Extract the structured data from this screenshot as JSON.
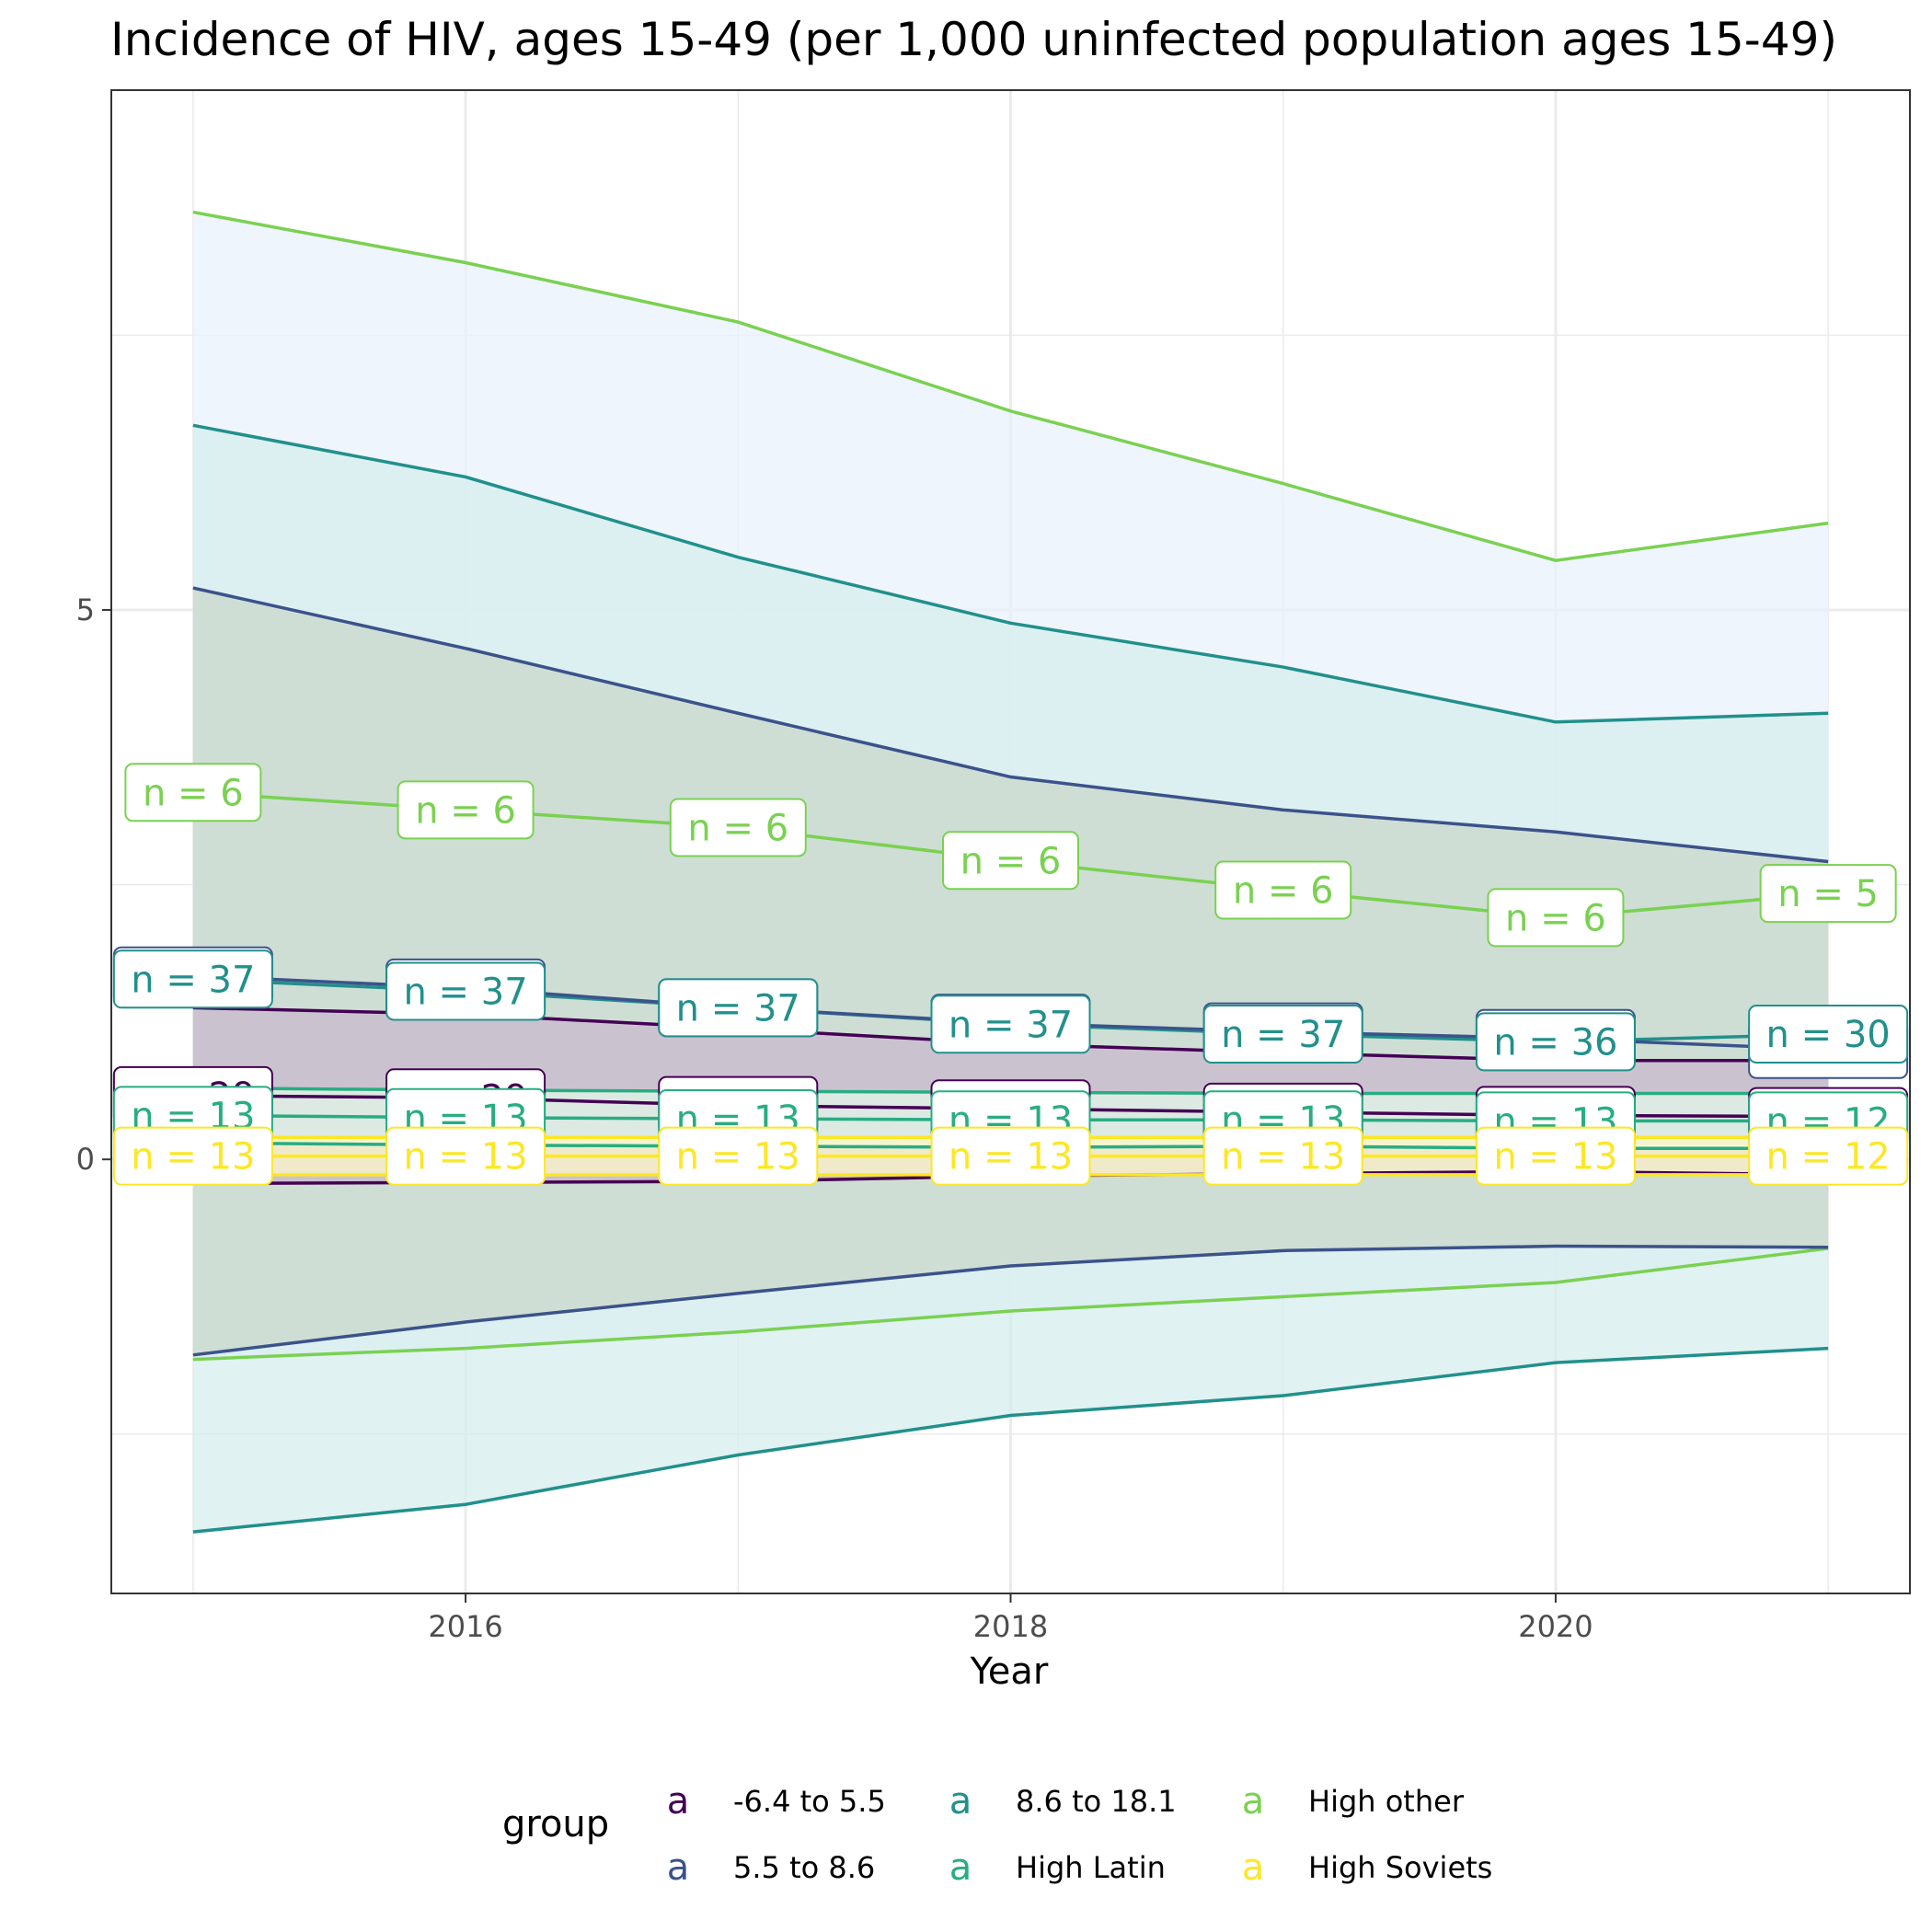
{
  "chart_data": {
    "type": "line",
    "title": "Incidence of HIV, ages 15-49 (per 1,000 uninfected population ages 15-49)",
    "xlabel": "Year",
    "ylabel": "",
    "xlim": [
      2014.7,
      2021.3
    ],
    "ylim": [
      -3.95,
      9.73
    ],
    "x_ticks": [
      2016,
      2018,
      2020
    ],
    "y_ticks": [
      0,
      5
    ],
    "x": [
      2015,
      2016,
      2017,
      2018,
      2019,
      2020,
      2021
    ],
    "grid": true,
    "legend_position": "bottom",
    "legend_title": "group",
    "legend_key_glyph": "a",
    "series": [
      {
        "name": "-6.4 to 5.5",
        "color": "#440154",
        "band_color": "#c9b8cf",
        "mean": [
          0.58,
          0.56,
          0.49,
          0.46,
          0.43,
          0.4,
          0.39
        ],
        "upper": [
          1.38,
          1.32,
          1.19,
          1.05,
          0.97,
          0.9,
          0.9
        ],
        "lower": [
          -0.22,
          -0.21,
          -0.2,
          -0.15,
          -0.13,
          -0.11,
          -0.14
        ],
        "labels": [
          "n = 29",
          "n = 29",
          "n = 27",
          "n = 27",
          "n = 27",
          "n = 27",
          "n = 25"
        ]
      },
      {
        "name": "5.5 to 8.6",
        "color": "#3b528b",
        "band_color": "#c9d8c9",
        "mean": [
          1.67,
          1.56,
          1.38,
          1.24,
          1.16,
          1.1,
          1.0
        ],
        "upper": [
          5.2,
          4.65,
          4.06,
          3.48,
          3.18,
          2.98,
          2.71
        ],
        "lower": [
          -1.78,
          -1.48,
          -1.22,
          -0.97,
          -0.83,
          -0.79,
          -0.8
        ],
        "labels": [
          "n = 37",
          "n = 37",
          "n = 37",
          "n = 37",
          "n = 37",
          "n = 36",
          "n = 24"
        ]
      },
      {
        "name": "8.6 to 18.1",
        "color": "#21908c",
        "band_color": "#d6eeee",
        "mean": [
          1.64,
          1.53,
          1.38,
          1.23,
          1.14,
          1.07,
          1.14
        ],
        "upper": [
          6.68,
          6.21,
          5.48,
          4.88,
          4.48,
          3.98,
          4.06
        ],
        "lower": [
          -3.39,
          -3.14,
          -2.69,
          -2.33,
          -2.15,
          -1.85,
          -1.72
        ],
        "labels": [
          "n = 37",
          "n = 37",
          "n = 37",
          "n = 37",
          "n = 37",
          "n = 36",
          "n = 30"
        ]
      },
      {
        "name": "High Latin",
        "color": "#27ad81",
        "band_color": "#e3f5ea",
        "mean": [
          0.4,
          0.38,
          0.37,
          0.36,
          0.36,
          0.35,
          0.35
        ],
        "upper": [
          0.65,
          0.63,
          0.62,
          0.61,
          0.6,
          0.6,
          0.6
        ],
        "lower": [
          0.15,
          0.13,
          0.12,
          0.11,
          0.12,
          0.1,
          0.1
        ],
        "labels": [
          "n = 13",
          "n = 13",
          "n = 13",
          "n = 13",
          "n = 13",
          "n = 13",
          "n = 12"
        ]
      },
      {
        "name": "High other",
        "color": "#7ad151",
        "band_color": "#eaf2fc",
        "mean": [
          3.34,
          3.18,
          3.02,
          2.72,
          2.45,
          2.2,
          2.42
        ],
        "upper": [
          8.62,
          8.16,
          7.62,
          6.81,
          6.15,
          5.45,
          5.79
        ],
        "lower": [
          -1.82,
          -1.72,
          -1.57,
          -1.38,
          -1.25,
          -1.12,
          -0.81
        ],
        "labels": [
          "n = 6",
          "n = 6",
          "n = 6",
          "n = 6",
          "n = 6",
          "n = 6",
          "n = 5"
        ]
      },
      {
        "name": "High Soviets",
        "color": "#fde725",
        "band_color": "#fdf7c8",
        "mean": [
          0.03,
          0.03,
          0.03,
          0.03,
          0.03,
          0.03,
          0.03
        ],
        "upper": [
          0.2,
          0.2,
          0.2,
          0.2,
          0.2,
          0.2,
          0.2
        ],
        "lower": [
          -0.14,
          -0.14,
          -0.14,
          -0.14,
          -0.14,
          -0.14,
          -0.14
        ],
        "labels": [
          "n = 13",
          "n = 13",
          "n = 13",
          "n = 13",
          "n = 13",
          "n = 13",
          "n = 12"
        ]
      }
    ]
  }
}
